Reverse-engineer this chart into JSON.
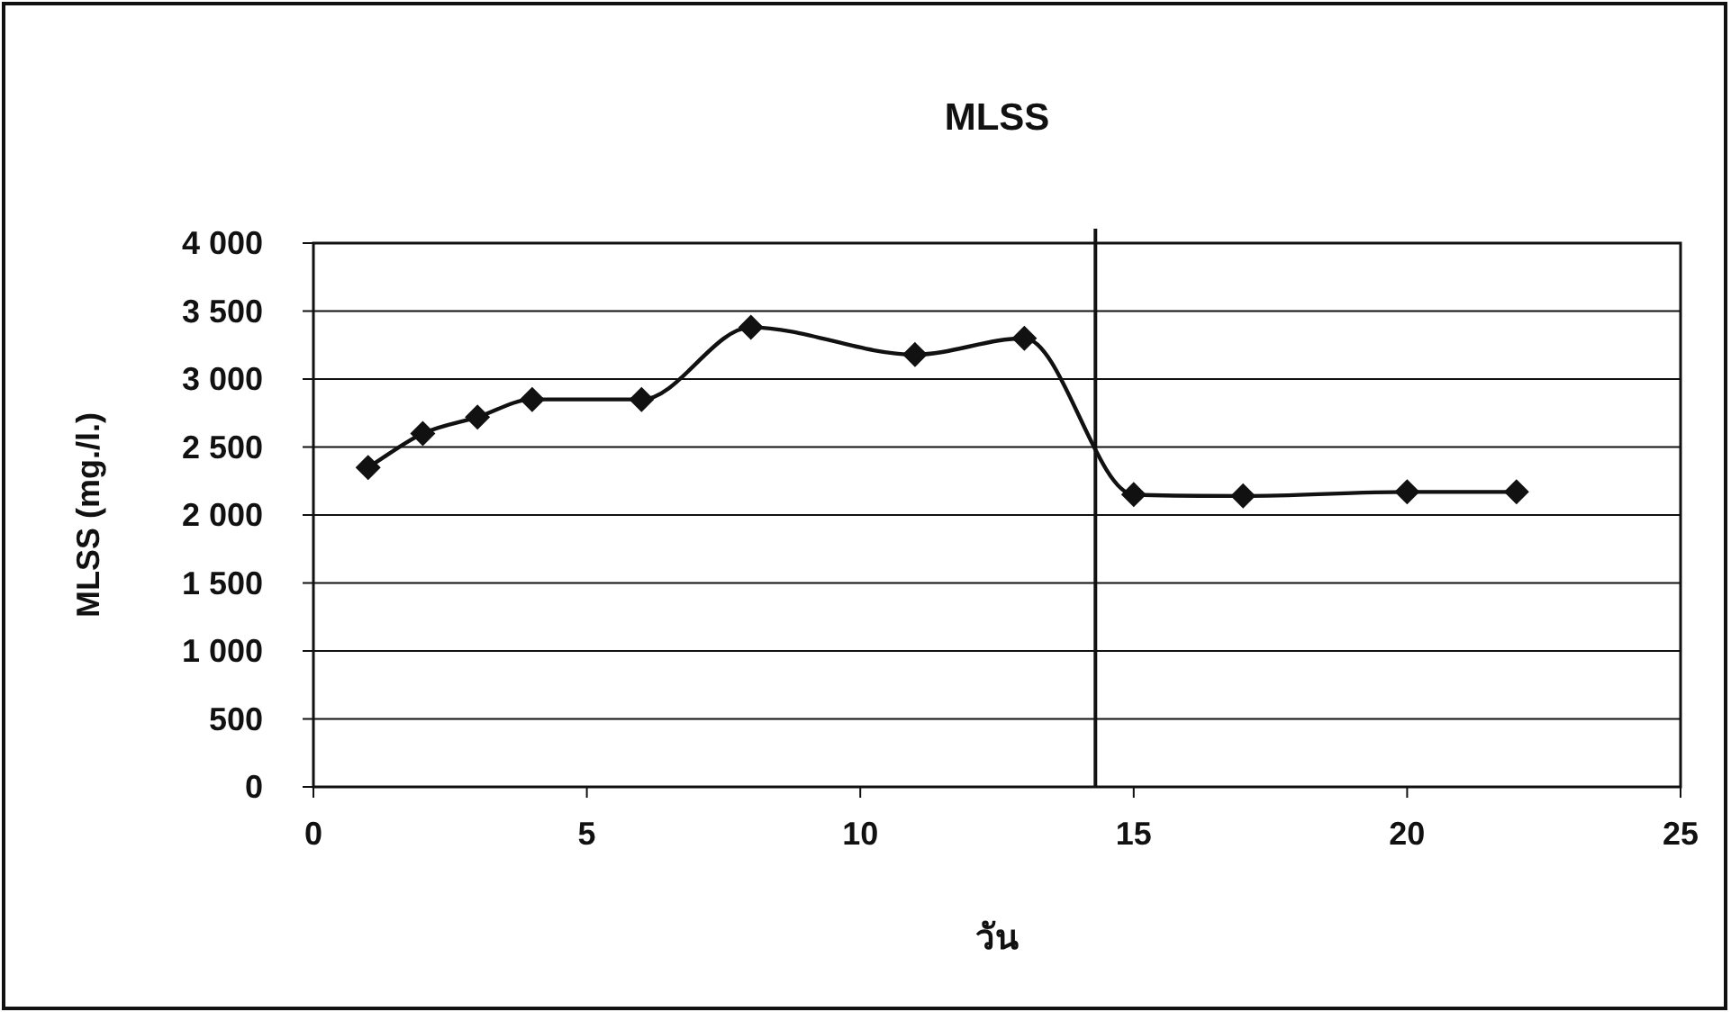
{
  "chart_data": {
    "type": "line",
    "title": "MLSS",
    "xlabel": "วัน",
    "ylabel": "MLSS (mg./l.)",
    "x": [
      1,
      2,
      3,
      4,
      6,
      8,
      11,
      13,
      15,
      17,
      20,
      22
    ],
    "series": [
      {
        "color": "#111111",
        "values": [
          2350,
          2600,
          2720,
          2850,
          2850,
          3380,
          3180,
          3300,
          2150,
          2140,
          2170,
          2170
        ]
      }
    ],
    "xlim": [
      0,
      25
    ],
    "xticks": [
      0,
      5,
      10,
      15,
      20,
      25
    ],
    "ylim": [
      0,
      4000
    ],
    "yticks": [
      0,
      500,
      {
        "value": 1000,
        "label": "1 000"
      },
      {
        "value": 1500,
        "label": "1 500"
      },
      {
        "value": 2000,
        "label": "2 000"
      },
      {
        "value": 2500,
        "label": "2 500"
      },
      {
        "value": 3000,
        "label": "3 000"
      },
      {
        "value": 3500,
        "label": "3 500"
      },
      {
        "value": 4000,
        "label": "4 000"
      }
    ],
    "ref_lines": [
      {
        "axis": "x",
        "value": 14.3,
        "color": "#111111"
      }
    ],
    "grid": "y",
    "marker": "diamond",
    "line_style": "solid"
  }
}
